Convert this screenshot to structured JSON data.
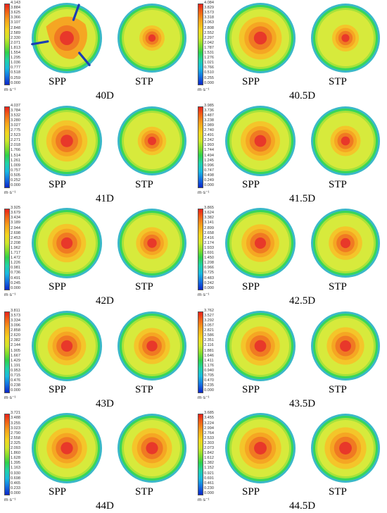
{
  "unit_label": "m·s⁻¹",
  "colors": {
    "outer_ring": "#3ab8c8",
    "ring2": "#37d65a",
    "field": "#d7ea3c",
    "warm": "#f5a623",
    "core": "#e8382a",
    "blade": "#1a3fb4"
  },
  "panels": [
    {
      "position": "40D",
      "spp_label": "SPP",
      "stp_label": "STP",
      "ticks": [
        "4.143",
        "3.884",
        "3.625",
        "3.366",
        "3.107",
        "2.848",
        "2.589",
        "2.330",
        "2.071",
        "1.813",
        "1.554",
        "1.295",
        "1.036",
        "0.777",
        "0.518",
        "0.259",
        "0.000"
      ],
      "spp_intensity": 0.95,
      "stp_intensity": 0.35,
      "blades_visible": true
    },
    {
      "position": "40.5D",
      "spp_label": "SPP",
      "stp_label": "STP",
      "ticks": [
        "4.084",
        "3.829",
        "3.573",
        "3.318",
        "3.063",
        "2.808",
        "2.552",
        "2.297",
        "2.042",
        "1.787",
        "1.531",
        "1.276",
        "1.021",
        "0.766",
        "0.510",
        "0.255",
        "0.000"
      ],
      "spp_intensity": 0.85,
      "stp_intensity": 0.4,
      "blades_visible": false
    },
    {
      "position": "41D",
      "spp_label": "SPP",
      "stp_label": "STP",
      "ticks": [
        "4.037",
        "3.784",
        "3.532",
        "3.280",
        "3.027",
        "2.775",
        "2.523",
        "2.271",
        "2.018",
        "1.766",
        "1.514",
        "1.261",
        "1.009",
        "0.757",
        "0.505",
        "0.252",
        "0.000"
      ],
      "spp_intensity": 0.8,
      "stp_intensity": 0.45,
      "blades_visible": false
    },
    {
      "position": "41.5D",
      "spp_label": "SPP",
      "stp_label": "STP",
      "ticks": [
        "3.985",
        "3.736",
        "3.487",
        "3.238",
        "2.989",
        "2.740",
        "2.491",
        "2.242",
        "1.993",
        "1.744",
        "1.494",
        "1.245",
        "0.996",
        "0.747",
        "0.498",
        "0.249",
        "0.000"
      ],
      "spp_intensity": 0.75,
      "stp_intensity": 0.5,
      "blades_visible": false
    },
    {
      "position": "42D",
      "spp_label": "SPP",
      "stp_label": "STP",
      "ticks": [
        "3.925",
        "3.679",
        "3.434",
        "3.189",
        "2.944",
        "2.698",
        "2.453",
        "2.208",
        "1.962",
        "1.717",
        "1.472",
        "1.226",
        "0.981",
        "0.736",
        "0.491",
        "0.245",
        "0.000"
      ],
      "spp_intensity": 0.72,
      "stp_intensity": 0.55,
      "blades_visible": false
    },
    {
      "position": "42.5D",
      "spp_label": "SPP",
      "stp_label": "STP",
      "ticks": [
        "3.865",
        "3.624",
        "3.382",
        "3.141",
        "2.899",
        "2.658",
        "2.416",
        "2.174",
        "1.933",
        "1.691",
        "1.450",
        "1.208",
        "0.966",
        "0.725",
        "0.483",
        "0.242",
        "0.000"
      ],
      "spp_intensity": 0.7,
      "stp_intensity": 0.6,
      "blades_visible": false
    },
    {
      "position": "43D",
      "spp_label": "SPP",
      "stp_label": "STP",
      "ticks": [
        "3.811",
        "3.573",
        "3.334",
        "3.096",
        "2.858",
        "2.620",
        "2.382",
        "2.144",
        "1.905",
        "1.667",
        "1.429",
        "1.191",
        "0.953",
        "0.715",
        "0.476",
        "0.238",
        "0.000"
      ],
      "spp_intensity": 0.72,
      "stp_intensity": 0.68,
      "blades_visible": false
    },
    {
      "position": "43.5D",
      "spp_label": "SPP",
      "stp_label": "STP",
      "ticks": [
        "3.762",
        "3.527",
        "3.292",
        "3.057",
        "2.821",
        "2.586",
        "2.351",
        "2.116",
        "1.881",
        "1.646",
        "1.411",
        "1.176",
        "0.940",
        "0.705",
        "0.470",
        "0.235",
        "0.000"
      ],
      "spp_intensity": 0.74,
      "stp_intensity": 0.72,
      "blades_visible": false
    },
    {
      "position": "44D",
      "spp_label": "SPP",
      "stp_label": "STP",
      "ticks": [
        "3.721",
        "3.488",
        "3.255",
        "3.023",
        "2.790",
        "2.558",
        "2.325",
        "2.093",
        "1.860",
        "1.628",
        "1.395",
        "1.163",
        "0.930",
        "0.698",
        "0.465",
        "0.233",
        "0.000"
      ],
      "spp_intensity": 0.78,
      "stp_intensity": 0.8,
      "blades_visible": false
    },
    {
      "position": "44.5D",
      "spp_label": "SPP",
      "stp_label": "STP",
      "ticks": [
        "3.685",
        "3.455",
        "3.224",
        "2.994",
        "2.764",
        "2.533",
        "2.303",
        "2.073",
        "1.842",
        "1.612",
        "1.382",
        "1.152",
        "0.921",
        "0.691",
        "0.461",
        "0.230",
        "0.000"
      ],
      "spp_intensity": 0.82,
      "stp_intensity": 0.85,
      "blades_visible": false
    }
  ]
}
